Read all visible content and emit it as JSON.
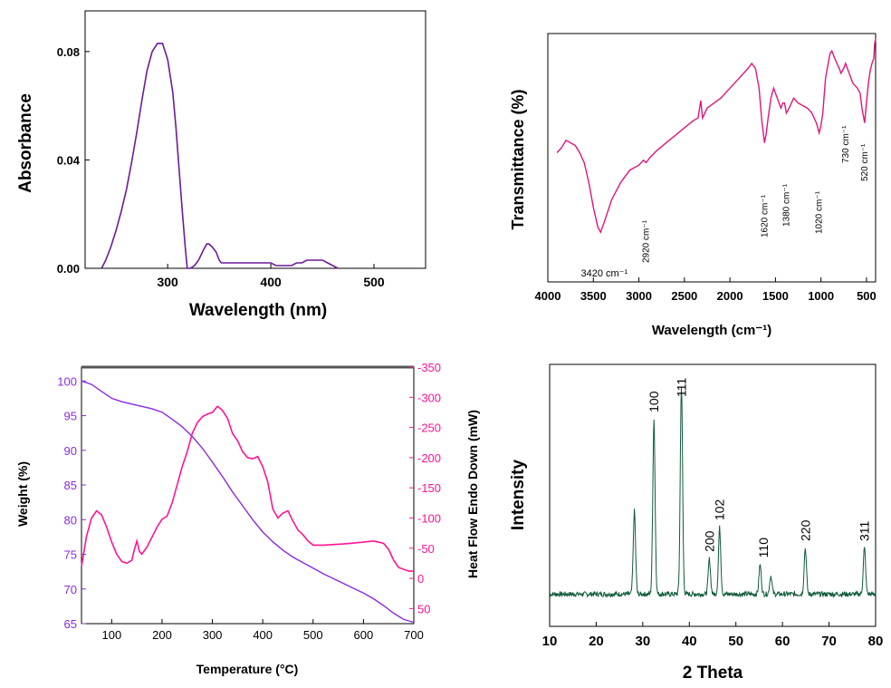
{
  "chart_data": [
    {
      "type": "line",
      "ylabel": "Absorbance",
      "xlabel": "Wavelength (nm)",
      "xlim": [
        220,
        550
      ],
      "ylim": [
        0,
        0.095
      ],
      "xticks": [
        300,
        400,
        500
      ],
      "xtick_labels": [
        "300",
        "400",
        "500"
      ],
      "yticks": [
        0,
        0.04,
        0.08
      ],
      "ytick_labels": [
        "0.00",
        "0.04",
        "0.08"
      ],
      "color": "#6a1b9a",
      "series": [
        {
          "x": [
            236,
            240,
            245,
            250,
            255,
            260,
            265,
            270,
            275,
            280,
            285,
            290,
            295,
            300,
            305,
            308,
            311,
            314,
            317,
            319,
            322,
            326,
            330,
            335,
            338,
            340,
            343,
            347,
            350,
            352,
            356,
            360,
            370,
            380,
            390,
            400,
            405,
            410,
            420,
            425,
            430,
            435,
            440,
            445,
            450,
            455,
            460,
            465
          ],
          "y": [
            0,
            0.003,
            0.008,
            0.014,
            0.021,
            0.029,
            0.039,
            0.05,
            0.062,
            0.073,
            0.08,
            0.083,
            0.083,
            0.077,
            0.065,
            0.052,
            0.037,
            0.022,
            0.008,
            0.0,
            0.0,
            0.001,
            0.003,
            0.007,
            0.009,
            0.009,
            0.008,
            0.006,
            0.003,
            0.002,
            0.002,
            0.002,
            0.002,
            0.002,
            0.002,
            0.002,
            0.001,
            0.001,
            0.001,
            0.002,
            0.002,
            0.003,
            0.003,
            0.003,
            0.003,
            0.002,
            0.001,
            0.0
          ]
        }
      ]
    },
    {
      "type": "line",
      "ylabel": "Transmittance (%)",
      "xlabel": "Wavelength (cm⁻¹)",
      "xlim": [
        4000,
        400
      ],
      "ylim": [
        0,
        100
      ],
      "xticks": [
        4000,
        3500,
        3000,
        2500,
        2000,
        1500,
        1000,
        500
      ],
      "xtick_labels": [
        "4000",
        "3500",
        "3000",
        "2500",
        "2000",
        "1500",
        "1000",
        "500"
      ],
      "color": "#e0157a",
      "annotations": [
        "3420 cm⁻¹",
        "2920 cm⁻¹",
        "1620 cm⁻¹",
        "1380 cm⁻¹",
        "1020 cm⁻¹",
        "730 cm⁻¹",
        "520 cm⁻¹"
      ],
      "annotation_x": [
        3420,
        2920,
        1620,
        1380,
        1020,
        730,
        520
      ],
      "series": [
        {
          "x": [
            3900,
            3850,
            3800,
            3750,
            3700,
            3650,
            3600,
            3550,
            3500,
            3450,
            3420,
            3380,
            3300,
            3200,
            3100,
            3000,
            2950,
            2920,
            2880,
            2800,
            2700,
            2600,
            2500,
            2400,
            2350,
            2320,
            2300,
            2250,
            2100,
            2000,
            1900,
            1800,
            1760,
            1720,
            1680,
            1650,
            1620,
            1600,
            1580,
            1550,
            1520,
            1500,
            1470,
            1440,
            1420,
            1400,
            1380,
            1350,
            1300,
            1250,
            1200,
            1150,
            1100,
            1050,
            1020,
            1000,
            980,
            950,
            900,
            880,
            850,
            800,
            780,
            750,
            730,
            700,
            650,
            600,
            570,
            550,
            520,
            500,
            480,
            460,
            440,
            420,
            410,
            400
          ],
          "y": [
            52,
            54,
            57,
            56,
            55,
            52,
            48,
            40,
            30,
            22,
            20,
            24,
            33,
            40,
            45,
            47,
            49,
            48,
            50,
            53,
            56,
            59,
            62,
            65,
            66,
            73,
            66,
            70,
            74,
            78,
            82,
            86,
            88,
            86,
            78,
            65,
            56,
            60,
            66,
            74,
            78,
            76,
            73,
            70,
            72,
            72,
            68,
            70,
            74,
            72,
            71,
            70,
            68,
            64,
            60,
            63,
            68,
            82,
            92,
            93,
            90,
            86,
            84,
            86,
            88,
            85,
            80,
            78,
            76,
            70,
            64,
            72,
            80,
            85,
            88,
            90,
            96,
            98
          ]
        }
      ]
    },
    {
      "type": "line",
      "ylabel": "Weight (%)",
      "y2label": "Heat Flow Endo Down (mW)",
      "xlabel": "Temperature (°C)",
      "xlim": [
        40,
        700
      ],
      "ylim": [
        65,
        102
      ],
      "y2lim": [
        -350,
        75
      ],
      "xticks": [
        100,
        200,
        300,
        400,
        500,
        600,
        700
      ],
      "xtick_labels": [
        "100",
        "200",
        "300",
        "400",
        "500",
        "600",
        "700"
      ],
      "yticks": [
        65,
        70,
        75,
        80,
        85,
        90,
        95,
        100
      ],
      "ytick_labels": [
        "65",
        "70",
        "75",
        "80",
        "85",
        "90",
        "95",
        "100"
      ],
      "y2ticks": [
        -350,
        -300,
        -250,
        -200,
        -150,
        -100,
        -50,
        0,
        50
      ],
      "y2tick_labels": [
        "-350",
        "-300",
        "-250",
        "-200",
        "-150",
        "-100",
        "-50",
        "0",
        "50"
      ],
      "colors": {
        "weight": "#8a2be2",
        "heat": "#ff1493"
      },
      "series": [
        {
          "name": "Weight (%)",
          "x": [
            40,
            60,
            80,
            100,
            120,
            150,
            180,
            200,
            220,
            240,
            260,
            280,
            300,
            320,
            340,
            360,
            380,
            400,
            420,
            440,
            460,
            480,
            500,
            520,
            540,
            560,
            580,
            600,
            620,
            640,
            660,
            680,
            700
          ],
          "y": [
            100,
            99.5,
            98.5,
            97.5,
            97,
            96.5,
            96,
            95.5,
            94.5,
            93.4,
            92,
            90.3,
            88.3,
            86.2,
            84,
            82,
            80,
            78.2,
            76.8,
            75.6,
            74.6,
            73.8,
            73,
            72.2,
            71.5,
            70.8,
            70.1,
            69.4,
            68.6,
            67.6,
            66.5,
            65.6,
            65.2
          ]
        },
        {
          "name": "Heat Flow Endo Down (mW)",
          "x": [
            40,
            50,
            60,
            70,
            80,
            90,
            100,
            110,
            120,
            130,
            140,
            145,
            150,
            155,
            160,
            170,
            180,
            190,
            200,
            210,
            220,
            230,
            240,
            250,
            260,
            270,
            280,
            290,
            300,
            310,
            315,
            320,
            330,
            340,
            350,
            360,
            370,
            380,
            390,
            400,
            410,
            420,
            430,
            440,
            450,
            460,
            470,
            480,
            490,
            500,
            520,
            560,
            600,
            620,
            640,
            650,
            660,
            670,
            680,
            690,
            700
          ],
          "y": [
            -20,
            -70,
            -100,
            -112,
            -105,
            -85,
            -60,
            -40,
            -28,
            -25,
            -30,
            -48,
            -62,
            -45,
            -40,
            -52,
            -68,
            -85,
            -98,
            -103,
            -125,
            -155,
            -185,
            -210,
            -240,
            -258,
            -268,
            -272,
            -275,
            -285,
            -282,
            -278,
            -265,
            -240,
            -228,
            -210,
            -200,
            -198,
            -202,
            -185,
            -160,
            -115,
            -100,
            -108,
            -112,
            -95,
            -80,
            -72,
            -62,
            -55,
            -55,
            -57,
            -60,
            -62,
            -58,
            -48,
            -30,
            -18,
            -15,
            -12,
            -12
          ]
        }
      ]
    },
    {
      "type": "line",
      "ylabel": "Intensity",
      "xlabel": "2 Theta",
      "xlim": [
        10,
        80
      ],
      "xticks": [
        10,
        20,
        30,
        40,
        50,
        60,
        70,
        80
      ],
      "xtick_labels": [
        "10",
        "20",
        "30",
        "40",
        "50",
        "60",
        "70",
        "80"
      ],
      "color": "#0f5a38",
      "annotations": [
        "100",
        "111",
        "200",
        "102",
        "110",
        "220",
        "311"
      ],
      "annotation_x": [
        32.4,
        38.3,
        44.3,
        46.5,
        55.9,
        64.9,
        77.6
      ],
      "series": [
        {
          "peaks": [
            [
              28.2,
              100
            ],
            [
              32.4,
              210
            ],
            [
              38.3,
              250
            ],
            [
              44.3,
              42
            ],
            [
              46.5,
              80
            ],
            [
              55.2,
              35
            ],
            [
              57.5,
              22
            ],
            [
              64.9,
              55
            ],
            [
              77.6,
              55
            ]
          ],
          "baseline": 5,
          "ymax": 265
        }
      ]
    }
  ]
}
